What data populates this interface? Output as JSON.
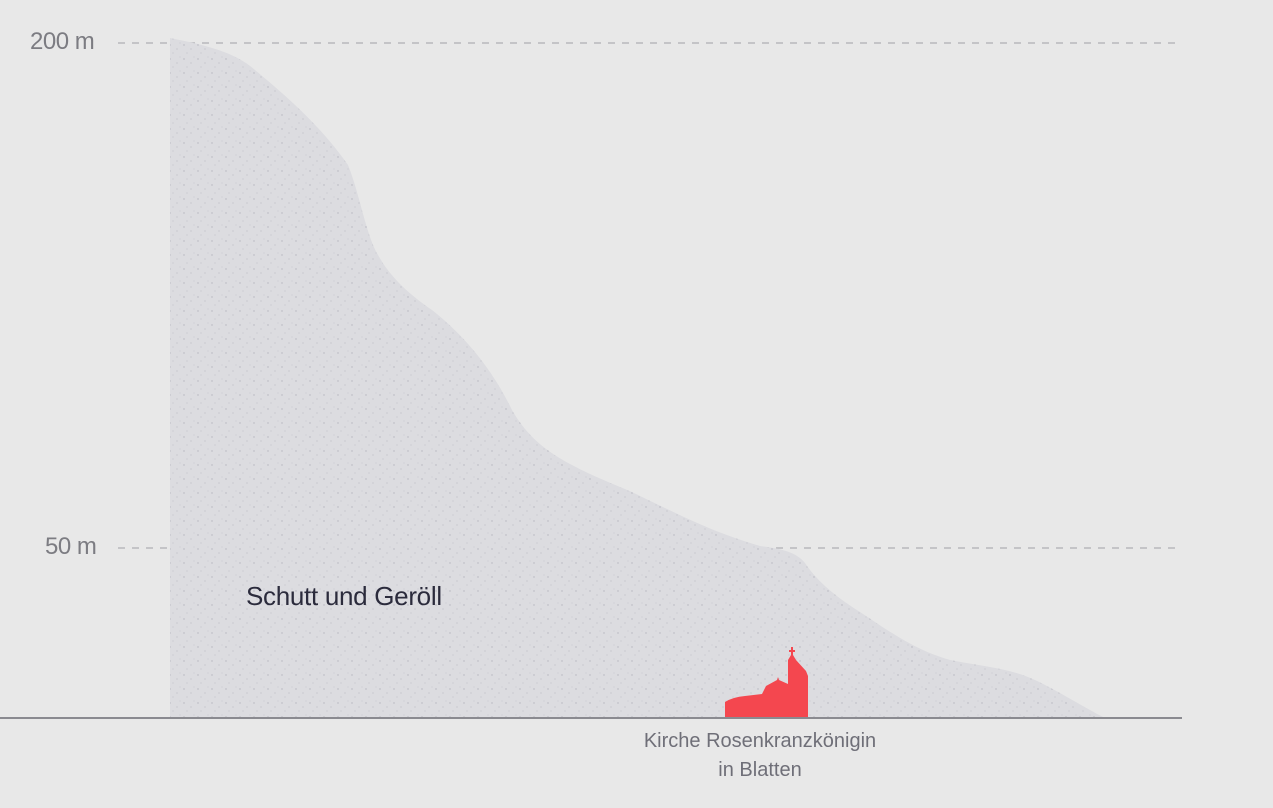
{
  "axis": {
    "ticks": [
      "200 m",
      "50 m"
    ]
  },
  "area": {
    "label": "Schutt und Geröll"
  },
  "church": {
    "caption_line1": "Kirche Rosenkranzkönigin",
    "caption_line2": "in Blatten"
  },
  "colors": {
    "background": "#e8e8e8",
    "debris": "#dcdce0",
    "church": "#f4474f",
    "gridline": "#b8b8bc",
    "baseline": "#8a8a90"
  }
}
